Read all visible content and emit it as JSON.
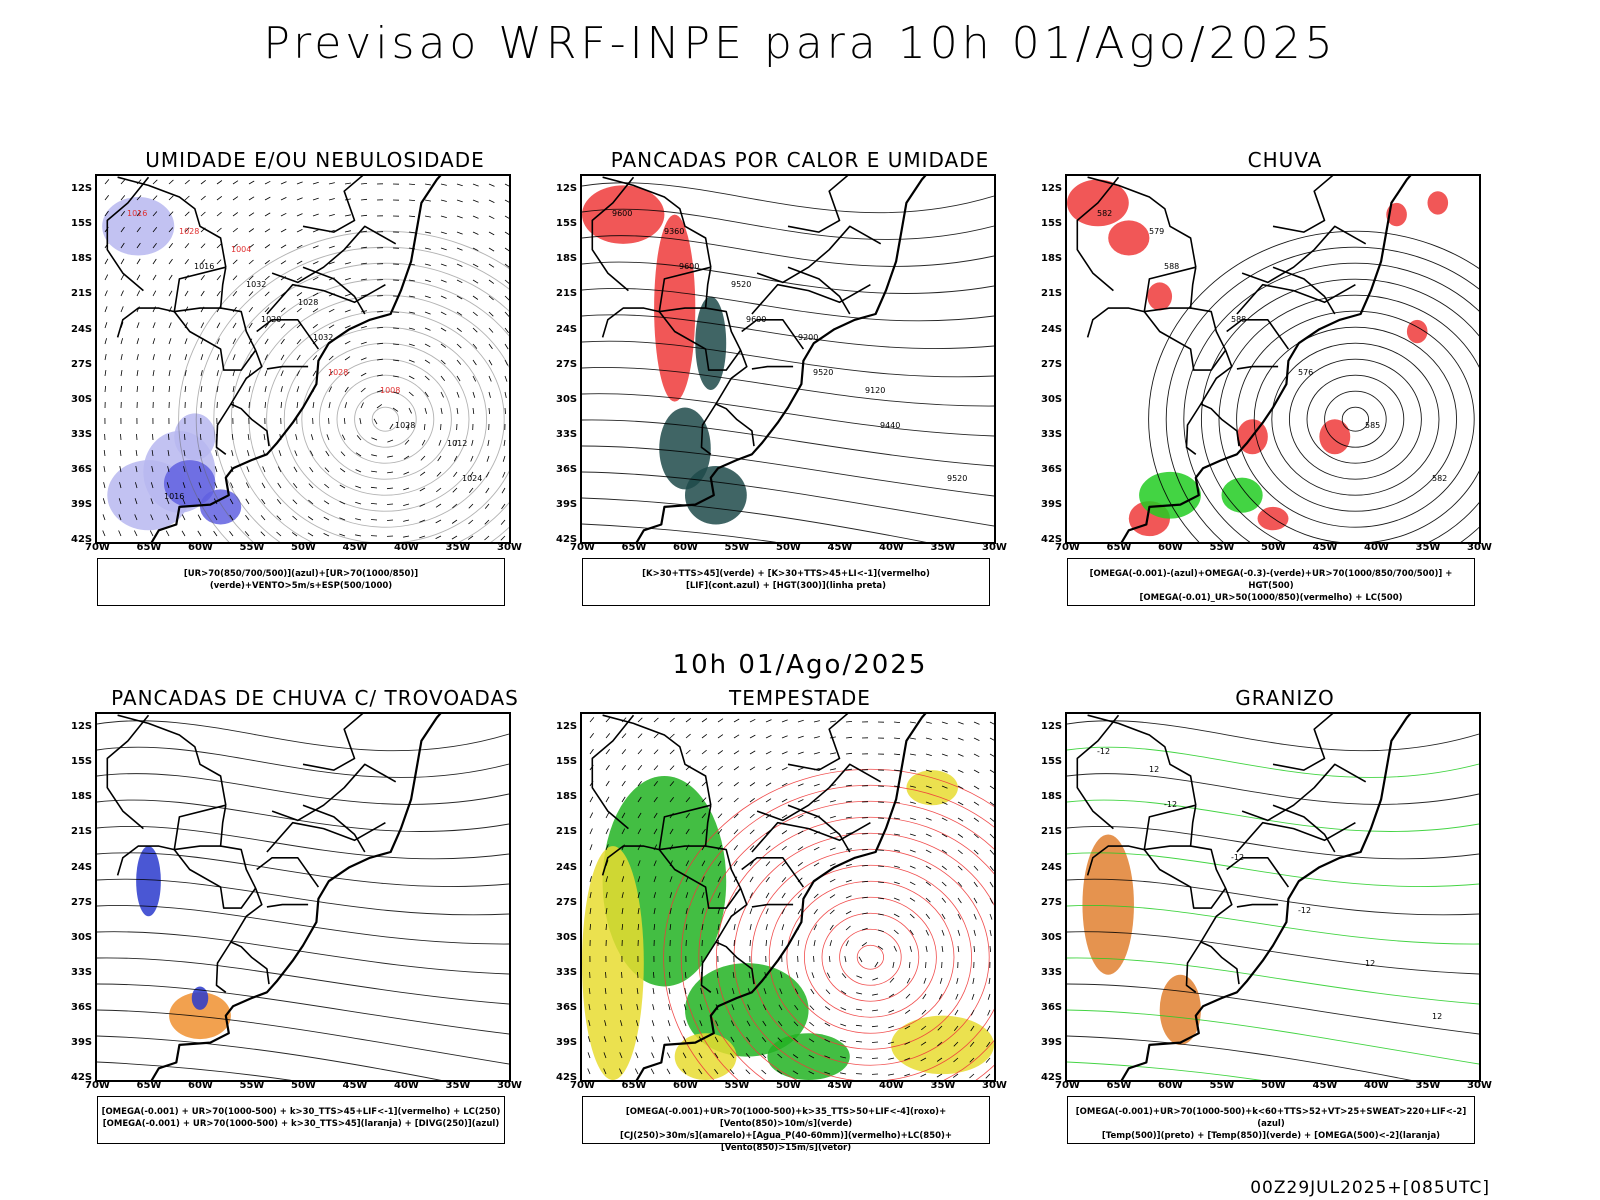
{
  "page": {
    "title": "Previsao WRF-INPE  para 10h 01/Ago/2025",
    "mid_time": "10h 01/Ago/2025",
    "footer": "00Z29JUL2025+[085UTC]"
  },
  "axes": {
    "lat_labels": [
      "12S",
      "15S",
      "18S",
      "21S",
      "24S",
      "27S",
      "30S",
      "33S",
      "36S",
      "39S",
      "42S"
    ],
    "lon_labels": [
      "70W",
      "65W",
      "60W",
      "55W",
      "50W",
      "45W",
      "40W",
      "35W",
      "30W"
    ]
  },
  "panels": [
    {
      "title": "UMIDADE E/OU NEBULOSIDADE",
      "legend": [
        "[UR>70(850/700/500)](azul)+[UR>70(1000/850)](verde)+VENTO>5m/s+ESP(500/1000)"
      ],
      "contour_labels": [
        "1016",
        "1016",
        "1020",
        "1028",
        "1028",
        "1024",
        "1028",
        "1032",
        "1032",
        "1008",
        "1012",
        "1016",
        "1004",
        "1028"
      ],
      "colors": {
        "fill1": "#b7b7f0",
        "fill2": "#6060e0",
        "line1": "#22cc22",
        "line2": "#e03030"
      }
    },
    {
      "title": "PANCADAS POR CALOR E UMIDADE",
      "legend": [
        "[K>30+TTS>45](verde) + [K>30+TTS>45+LI<-1](vermelho)",
        "[LIF](cont.azul) + [HGT(300)](linha preta)"
      ],
      "contour_labels": [
        "9600",
        "9600",
        "9600",
        "9520",
        "9440",
        "9520",
        "9360",
        "9520",
        "9200",
        "9120"
      ],
      "colors": {
        "fill1": "#1e4a4a",
        "fill2": "#ee3a3a",
        "line1": "#2a3acc",
        "line2": "#000000"
      }
    },
    {
      "title": "CHUVA",
      "legend": [
        "[OMEGA(-0.001)-(azul)+OMEGA(-0.3)-(verde)+UR>70(1000/850/700/500)] + HGT(500)",
        "[OMEGA(-0.01)_UR>50(1000/850)(vermelho) + LC(500)"
      ],
      "contour_labels": [
        "582",
        "588",
        "588",
        "576",
        "585",
        "582",
        "579"
      ],
      "colors": {
        "fill1": "#ee3a3a",
        "fill2": "#22cc22",
        "line1": "#2a3acc",
        "line2": "#000000"
      }
    },
    {
      "title": "PANCADAS DE CHUVA C/ TROVOADAS",
      "legend": [
        "[OMEGA(-0.001) + UR>70(1000-500) + k>30_TTS>45+LIF<-1](vermelho) + LC(250)",
        "[OMEGA(-0.001) + UR>70(1000-500) + k>30_TTS>45](laranja) + [DIVG(250)](azul)"
      ],
      "contour_labels": [],
      "colors": {
        "fill1": "#f09030",
        "fill2": "#2a3acc",
        "line1": "#000000",
        "line2": "#e03030"
      }
    },
    {
      "title": "TEMPESTADE",
      "legend": [
        "[OMEGA(-0.001)+UR>70(1000-500)+k>35_TTS>50+LIF<-4](roxo)+[Vento(850)>10m/s](verde)",
        "[CJ(250)>30m/s](amarelo)+[Agua_P(40-60mm)](vermelho)+LC(850)+[Vento(850)>15m/s](vetor)"
      ],
      "contour_labels": [],
      "colors": {
        "fill1": "#22b322",
        "fill2": "#e8dc30",
        "line1": "#ee3a3a",
        "line2": "#000000"
      }
    },
    {
      "title": "GRANIZO",
      "legend": [
        "[OMEGA(-0.001)+UR>70(1000-500)+k<60+TTS>52+VT>25+SWEAT>220+LIF<-2](azul)",
        "[Temp(500)](preto) + [Temp(850)](verde) + [OMEGA(500)<-2](laranja)"
      ],
      "contour_labels": [
        "-12",
        "-12",
        "-12",
        "-12",
        "12",
        "12",
        "12"
      ],
      "colors": {
        "fill1": "#e08030",
        "fill2": "#22cc22",
        "line1": "#22cc22",
        "line2": "#000000"
      }
    }
  ]
}
